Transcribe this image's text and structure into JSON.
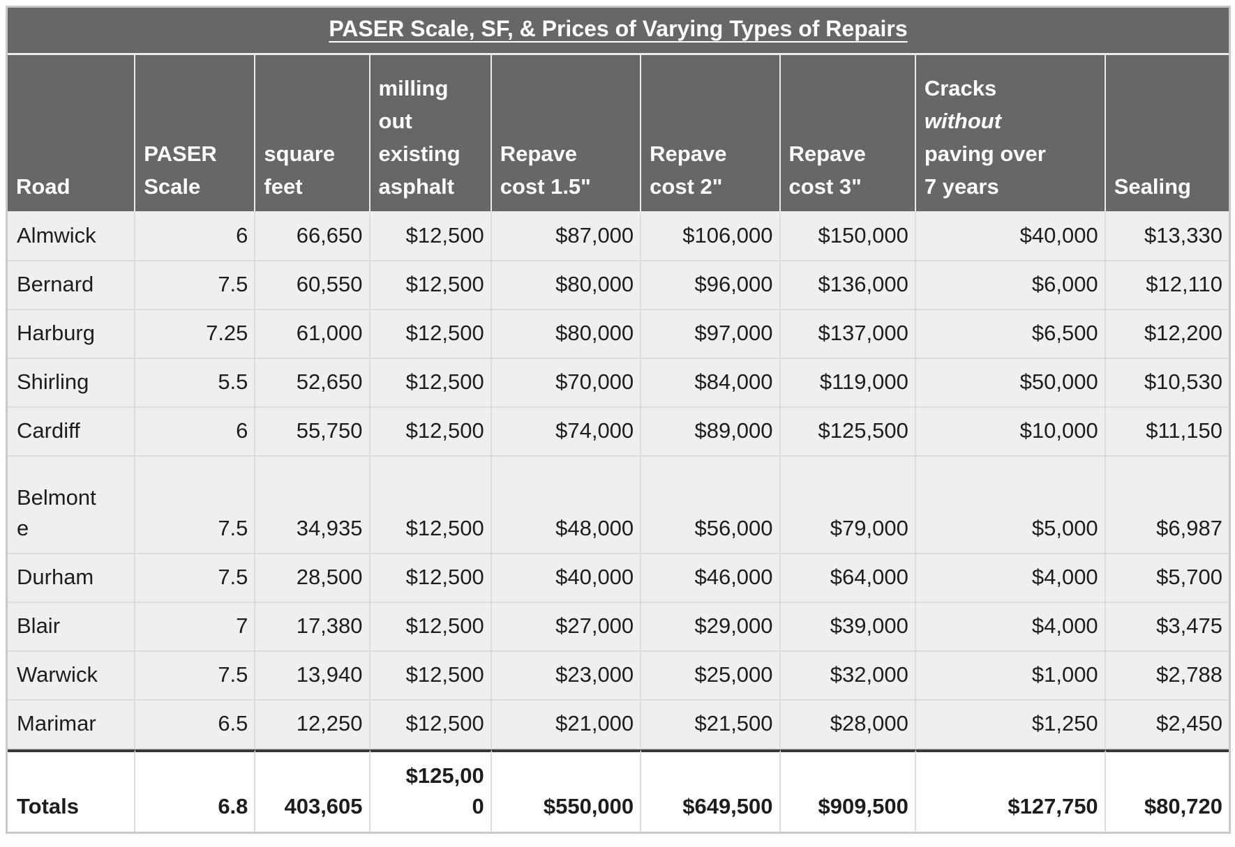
{
  "chart_data": {
    "type": "table",
    "title": "PASER Scale, SF, & Prices of Varying Types of Repairs",
    "columns": [
      "Road",
      "PASER Scale",
      "square feet",
      "milling out existing asphalt",
      "Repave cost 1.5\"",
      "Repave cost 2\"",
      "Repave cost 3\"",
      "Cracks without paving over 7 years",
      "Sealing"
    ],
    "rows": [
      [
        "Almwick",
        "6",
        "66,650",
        "$12,500",
        "$87,000",
        "$106,000",
        "$150,000",
        "$40,000",
        "$13,330"
      ],
      [
        "Bernard",
        "7.5",
        "60,550",
        "$12,500",
        "$80,000",
        "$96,000",
        "$136,000",
        "$6,000",
        "$12,110"
      ],
      [
        "Harburg",
        "7.25",
        "61,000",
        "$12,500",
        "$80,000",
        "$97,000",
        "$137,000",
        "$6,500",
        "$12,200"
      ],
      [
        "Shirling",
        "5.5",
        "52,650",
        "$12,500",
        "$70,000",
        "$84,000",
        "$119,000",
        "$50,000",
        "$10,530"
      ],
      [
        "Cardiff",
        "6",
        "55,750",
        "$12,500",
        "$74,000",
        "$89,000",
        "$125,500",
        "$10,000",
        "$11,150"
      ],
      [
        "Belmonte",
        "7.5",
        "34,935",
        "$12,500",
        "$48,000",
        "$56,000",
        "$79,000",
        "$5,000",
        "$6,987"
      ],
      [
        "Durham",
        "7.5",
        "28,500",
        "$12,500",
        "$40,000",
        "$46,000",
        "$64,000",
        "$4,000",
        "$5,700"
      ],
      [
        "Blair",
        "7",
        "17,380",
        "$12,500",
        "$27,000",
        "$29,000",
        "$39,000",
        "$4,000",
        "$3,475"
      ],
      [
        "Warwick",
        "7.5",
        "13,940",
        "$12,500",
        "$23,000",
        "$25,000",
        "$32,000",
        "$1,000",
        "$2,788"
      ],
      [
        "Marimar",
        "6.5",
        "12,250",
        "$12,500",
        "$21,000",
        "$21,500",
        "$28,000",
        "$1,250",
        "$2,450"
      ]
    ],
    "totals": [
      "Totals",
      "6.8",
      "403,605",
      "$125,000",
      "$550,000",
      "$649,500",
      "$909,500",
      "$127,750",
      "$80,720"
    ]
  },
  "header_parts": {
    "cracks": {
      "pre": "Cracks",
      "italic": "without",
      "post": "paving over 7 years"
    }
  },
  "colors": {
    "header_bg": "#676767",
    "header_text": "#ffffff",
    "row_bg": "#efefef",
    "totals_bg": "#ffffff",
    "grid_line": "#dcdcdc",
    "header_grid_line": "#ececec",
    "outer_border": "#c9c9c9",
    "totals_top_border": "#383838",
    "body_text": "#1d1d1d"
  }
}
